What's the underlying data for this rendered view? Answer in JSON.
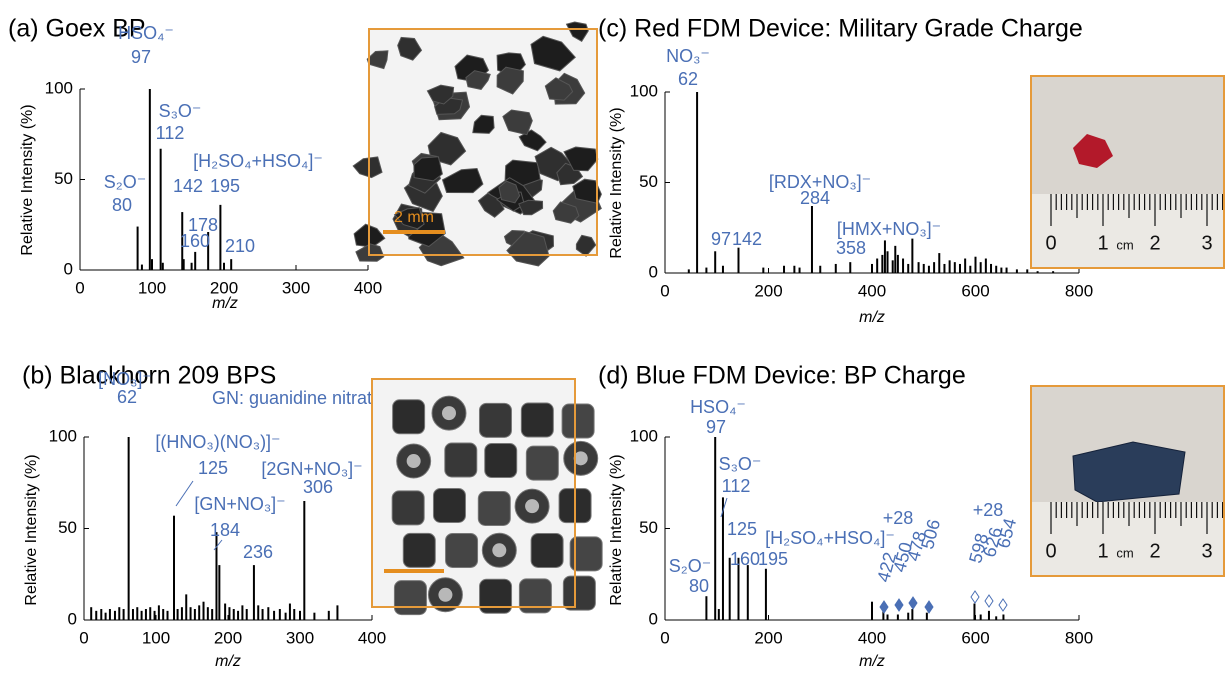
{
  "chart_data": [
    {
      "type": "bar",
      "title": "(a) Goex BP",
      "ylabel": "Relative Intensity (%)",
      "xlabel": "m/z",
      "xlim": [
        0,
        400
      ],
      "xticks": [
        0,
        100,
        200,
        300,
        400
      ],
      "ylim": [
        0,
        100
      ],
      "yticks": [
        0,
        50,
        100
      ],
      "color": "#000000",
      "x": [
        80,
        86,
        97,
        100,
        112,
        115,
        142,
        144,
        155,
        160,
        178,
        195,
        200,
        210
      ],
      "values": [
        24,
        3,
        100,
        6,
        67,
        4,
        32,
        6,
        4,
        10,
        21,
        36,
        4,
        6
      ],
      "peak_labels": [
        {
          "ion": "HSO₄⁻",
          "mz": 97
        },
        {
          "ion": "S₃O⁻",
          "mz": 112
        },
        {
          "ion": "S₂O⁻",
          "mz": 80
        },
        {
          "ion": "[H₂SO₄+HSO₄]⁻",
          "mz": 195
        },
        {
          "mz": 142
        },
        {
          "mz": 178
        },
        {
          "mz": 160
        },
        {
          "mz": 210
        }
      ],
      "scale_bar": "2 mm"
    },
    {
      "type": "bar",
      "title": "(b) Blackhorn 209 BPS",
      "ylabel": "Relative Intensity (%)",
      "xlabel": "m/z",
      "xlim": [
        0,
        400
      ],
      "xticks": [
        0,
        100,
        200,
        300,
        400
      ],
      "ylim": [
        0,
        100
      ],
      "yticks": [
        0,
        50,
        100
      ],
      "color": "#000000",
      "x": [
        10,
        17,
        24,
        30,
        36,
        43,
        49,
        55,
        62,
        68,
        74,
        80,
        86,
        92,
        98,
        104,
        110,
        116,
        125,
        130,
        136,
        142,
        148,
        154,
        160,
        166,
        172,
        178,
        184,
        188,
        196,
        202,
        208,
        214,
        220,
        226,
        236,
        242,
        248,
        256,
        264,
        272,
        280,
        286,
        292,
        300,
        306,
        320,
        340,
        352
      ],
      "values": [
        7,
        5,
        6,
        4,
        6,
        5,
        7,
        6,
        100,
        6,
        7,
        5,
        6,
        7,
        5,
        8,
        6,
        5,
        57,
        6,
        7,
        14,
        7,
        6,
        8,
        10,
        7,
        6,
        48,
        30,
        9,
        7,
        6,
        5,
        8,
        6,
        30,
        8,
        6,
        7,
        5,
        6,
        4,
        9,
        6,
        5,
        65,
        4,
        5,
        8
      ],
      "peak_labels": [
        {
          "ion": "[NO₃]⁻",
          "mz": 62
        },
        {
          "ion": "[(HNO₃)(NO₃)]⁻",
          "mz": 125
        },
        {
          "ion": "[GN+NO₃]⁻",
          "mz": 184
        },
        {
          "ion": "[2GN+NO₃]⁻",
          "mz": 306
        },
        {
          "mz": 236
        }
      ],
      "note": "GN: guanidine nitrate"
    },
    {
      "type": "bar",
      "title": "(c) Red FDM Device: Military Grade Charge",
      "ylabel": "Relative Intensity (%)",
      "xlabel": "m/z",
      "xlim": [
        0,
        800
      ],
      "xticks": [
        0,
        200,
        400,
        600,
        800
      ],
      "ylim": [
        0,
        100
      ],
      "yticks": [
        0,
        50,
        100
      ],
      "color": "#000000",
      "x": [
        46,
        62,
        80,
        97,
        112,
        142,
        190,
        230,
        250,
        260,
        284,
        300,
        330,
        358,
        400,
        410,
        420,
        425,
        430,
        440,
        445,
        450,
        460,
        470,
        478,
        490,
        500,
        510,
        520,
        530,
        540,
        550,
        560,
        570,
        580,
        590,
        600,
        610,
        620,
        630,
        640,
        650,
        660,
        680,
        700,
        720,
        750
      ],
      "values": [
        2,
        100,
        3,
        12,
        4,
        14,
        3,
        4,
        4,
        3,
        37,
        4,
        5,
        6,
        5,
        8,
        10,
        18,
        12,
        7,
        15,
        10,
        8,
        5,
        19,
        6,
        5,
        4,
        6,
        11,
        5,
        7,
        6,
        5,
        8,
        4,
        9,
        6,
        8,
        5,
        4,
        3,
        3,
        2,
        2,
        1,
        1
      ],
      "peak_labels": [
        {
          "ion": "NO₃⁻",
          "mz": 62
        },
        {
          "ion": "[RDX+NO₃]⁻",
          "mz": 284
        },
        {
          "ion": "[HMX+NO₃]⁻",
          "mz": 358
        },
        {
          "mz": 97
        },
        {
          "mz": 142
        }
      ],
      "ruler": [
        0,
        1,
        2,
        3
      ],
      "ruler_unit": "cm"
    },
    {
      "type": "bar",
      "title": "(d) Blue FDM Device: BP Charge",
      "ylabel": "Relative Intensity (%)",
      "xlabel": "m/z",
      "xlim": [
        0,
        800
      ],
      "xticks": [
        0,
        200,
        400,
        600,
        800
      ],
      "ylim": [
        0,
        100
      ],
      "yticks": [
        0,
        50,
        100
      ],
      "color": "#000000",
      "x": [
        80,
        97,
        104,
        112,
        125,
        142,
        160,
        195,
        400,
        422,
        430,
        450,
        470,
        478,
        506,
        598,
        610,
        626,
        640,
        654
      ],
      "values": [
        13,
        100,
        6,
        67,
        34,
        34,
        30,
        28,
        10,
        6,
        3,
        3,
        4,
        6,
        4,
        9,
        3,
        5,
        2,
        3
      ],
      "peak_labels": [
        {
          "ion": "HSO₄⁻",
          "mz": 97
        },
        {
          "ion": "S₃O⁻",
          "mz": 112
        },
        {
          "ion": "S₂O⁻",
          "mz": 80
        },
        {
          "ion": "[H₂SO₄+HSO₄]⁻",
          "mz": 195
        },
        {
          "mz": 125
        },
        {
          "mz": 160
        },
        {
          "mz": 422
        },
        {
          "mz": 450
        },
        {
          "mz": 478
        },
        {
          "mz": 506
        },
        {
          "mz": 598
        },
        {
          "mz": 626
        },
        {
          "mz": 654
        }
      ],
      "annotations": [
        "+28",
        "+28"
      ],
      "ruler": [
        0,
        1,
        2,
        3
      ],
      "ruler_unit": "cm"
    }
  ]
}
